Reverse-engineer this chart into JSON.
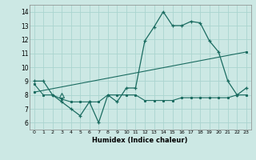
{
  "xlabel": "Humidex (Indice chaleur)",
  "bg_color": "#cce8e4",
  "grid_color": "#aad4cf",
  "line_color": "#1a6b60",
  "xlim": [
    -0.5,
    23.5
  ],
  "ylim": [
    5.5,
    14.5
  ],
  "xticks": [
    0,
    1,
    2,
    3,
    4,
    5,
    6,
    7,
    8,
    9,
    10,
    11,
    12,
    13,
    14,
    15,
    16,
    17,
    18,
    19,
    20,
    21,
    22,
    23
  ],
  "yticks": [
    6,
    7,
    8,
    9,
    10,
    11,
    12,
    13,
    14
  ],
  "line1_x": [
    0,
    1,
    2,
    3,
    4,
    5,
    6,
    7,
    8,
    9,
    10,
    11,
    12,
    13,
    14,
    15,
    16,
    17,
    18,
    19,
    20,
    21,
    22,
    23
  ],
  "line1_y": [
    9.0,
    9.0,
    8.0,
    7.5,
    7.0,
    6.5,
    7.5,
    6.0,
    8.0,
    7.5,
    8.5,
    8.5,
    11.9,
    12.9,
    14.0,
    13.0,
    13.0,
    13.3,
    13.2,
    11.9,
    11.1,
    9.0,
    8.0,
    8.5
  ],
  "line2_x": [
    0,
    1,
    2,
    3,
    4,
    5,
    6,
    7,
    8,
    9,
    10,
    11,
    12,
    13,
    14,
    15,
    16,
    17,
    18,
    19,
    20,
    21,
    22,
    23
  ],
  "line2_y": [
    8.8,
    8.0,
    8.0,
    7.7,
    7.5,
    7.5,
    7.5,
    7.5,
    8.0,
    8.0,
    8.0,
    8.0,
    7.6,
    7.6,
    7.6,
    7.6,
    7.8,
    7.8,
    7.8,
    7.8,
    7.8,
    7.8,
    8.0,
    8.0
  ],
  "trend_x": [
    0,
    23
  ],
  "trend_y": [
    8.2,
    11.1
  ]
}
